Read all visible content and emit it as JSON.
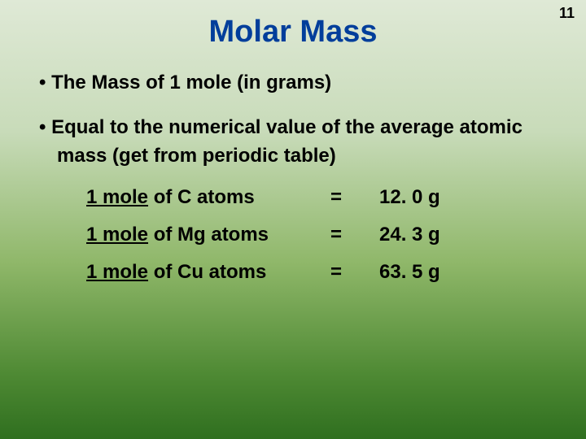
{
  "page_number": "11",
  "title": "Molar Mass",
  "bullets": [
    "The Mass of 1 mole (in grams)",
    "Equal to the numerical value of the average atomic mass (get from periodic table)"
  ],
  "examples": [
    {
      "qty": "1 mole",
      "of": " of  C atoms",
      "eq": "=",
      "val": "12. 0 g"
    },
    {
      "qty": "1 mole",
      "of": " of Mg atoms",
      "eq": "=",
      "val": "24. 3 g"
    },
    {
      "qty": "1 mole",
      "of": " of Cu atoms",
      "eq": "=",
      "val": "63. 5 g"
    }
  ],
  "colors": {
    "title": "#003e9b",
    "text": "#000000",
    "bg_top": "#dfe9d6",
    "bg_bottom": "#2f6f1f"
  },
  "typography": {
    "title_fontsize": 38,
    "body_fontsize": 24,
    "font_family": "Arial"
  }
}
